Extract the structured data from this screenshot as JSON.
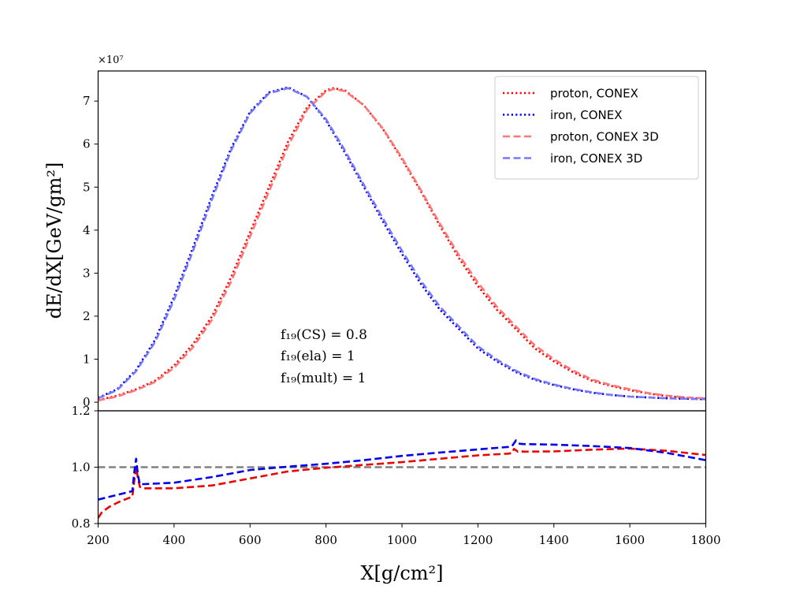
{
  "chart_data": [
    {
      "type": "line",
      "panel": "main",
      "ylabel": "dE/dX[GeV/gm²]",
      "y_scale_label": "×10⁷",
      "y_multiplier": 10000000,
      "xlim": [
        200,
        1800
      ],
      "ylim": [
        -0.2,
        7.7
      ],
      "yticks": [
        0,
        1,
        2,
        3,
        4,
        5,
        6,
        7
      ],
      "yticklabels": [
        "0",
        "1",
        "2",
        "3",
        "4",
        "5",
        "6",
        "7"
      ],
      "grid": false,
      "legend_position": "top-right",
      "annotation": [
        "f₁₉(CS) = 0.8",
        "f₁₉(ela) = 1",
        "f₁₉(mult) = 1"
      ],
      "series": [
        {
          "name": "proton, CONEX",
          "color": "#ff0000",
          "style": "dotted",
          "x": [
            200,
            250,
            300,
            350,
            400,
            450,
            500,
            550,
            600,
            650,
            700,
            750,
            800,
            820,
            850,
            900,
            950,
            1000,
            1050,
            1100,
            1150,
            1200,
            1250,
            1300,
            1350,
            1400,
            1450,
            1500,
            1550,
            1600,
            1650,
            1700,
            1750,
            1800
          ],
          "y": [
            0.05,
            0.15,
            0.3,
            0.5,
            0.85,
            1.35,
            2.0,
            2.9,
            3.95,
            5.0,
            6.05,
            6.85,
            7.25,
            7.3,
            7.25,
            6.9,
            6.35,
            5.65,
            4.9,
            4.1,
            3.35,
            2.7,
            2.15,
            1.7,
            1.25,
            0.95,
            0.7,
            0.5,
            0.38,
            0.28,
            0.2,
            0.14,
            0.1,
            0.08
          ]
        },
        {
          "name": "iron, CONEX",
          "color": "#0000ee",
          "style": "dotted",
          "x": [
            200,
            250,
            300,
            350,
            400,
            450,
            500,
            550,
            600,
            650,
            700,
            750,
            800,
            850,
            900,
            950,
            1000,
            1050,
            1100,
            1150,
            1200,
            1250,
            1300,
            1350,
            1400,
            1450,
            1500,
            1550,
            1600,
            1650,
            1700,
            1750,
            1800
          ],
          "y": [
            0.1,
            0.3,
            0.75,
            1.45,
            2.45,
            3.6,
            4.8,
            5.9,
            6.75,
            7.2,
            7.32,
            7.1,
            6.55,
            5.8,
            5.0,
            4.2,
            3.45,
            2.75,
            2.15,
            1.7,
            1.25,
            0.95,
            0.7,
            0.52,
            0.4,
            0.3,
            0.22,
            0.17,
            0.13,
            0.11,
            0.09,
            0.08,
            0.07
          ]
        },
        {
          "name": "proton, CONEX 3D",
          "color": "#ff7777",
          "style": "dashed",
          "x": [
            200,
            250,
            300,
            350,
            400,
            450,
            500,
            550,
            600,
            650,
            700,
            750,
            800,
            820,
            850,
            900,
            950,
            1000,
            1050,
            1100,
            1150,
            1200,
            1250,
            1300,
            1350,
            1400,
            1450,
            1500,
            1550,
            1600,
            1650,
            1700,
            1750,
            1800
          ],
          "y": [
            0.04,
            0.13,
            0.28,
            0.47,
            0.8,
            1.28,
            1.92,
            2.8,
            3.85,
            4.9,
            5.95,
            6.8,
            7.22,
            7.28,
            7.23,
            6.9,
            6.36,
            5.68,
            4.93,
            4.15,
            3.42,
            2.78,
            2.22,
            1.76,
            1.32,
            1.0,
            0.74,
            0.53,
            0.4,
            0.3,
            0.21,
            0.15,
            0.11,
            0.09
          ]
        },
        {
          "name": "iron, CONEX 3D",
          "color": "#7777ff",
          "style": "dashed",
          "x": [
            200,
            250,
            300,
            350,
            400,
            450,
            500,
            550,
            600,
            650,
            700,
            750,
            800,
            850,
            900,
            950,
            1000,
            1050,
            1100,
            1150,
            1200,
            1250,
            1300,
            1350,
            1400,
            1450,
            1500,
            1550,
            1600,
            1650,
            1700,
            1750,
            1800
          ],
          "y": [
            0.09,
            0.28,
            0.72,
            1.4,
            2.38,
            3.52,
            4.72,
            5.85,
            6.72,
            7.18,
            7.3,
            7.1,
            6.58,
            5.85,
            5.05,
            4.27,
            3.52,
            2.82,
            2.22,
            1.76,
            1.3,
            0.99,
            0.73,
            0.54,
            0.41,
            0.31,
            0.23,
            0.17,
            0.13,
            0.11,
            0.09,
            0.08,
            0.07
          ]
        }
      ]
    },
    {
      "type": "line",
      "panel": "ratio",
      "xlabel": "X[g/cm²]",
      "xlim": [
        200,
        1800
      ],
      "ylim": [
        0.8,
        1.2
      ],
      "xticks": [
        200,
        400,
        600,
        800,
        1000,
        1200,
        1400,
        1600,
        1800
      ],
      "xticklabels": [
        "200",
        "400",
        "600",
        "800",
        "1000",
        "1200",
        "1400",
        "1600",
        "1800"
      ],
      "yticks": [
        0.8,
        1.0,
        1.2
      ],
      "yticklabels": [
        "0.8",
        "1.0",
        "1.2"
      ],
      "grid": false,
      "reference_line": {
        "y": 1.0,
        "color": "#808080",
        "style": "dashed"
      },
      "series": [
        {
          "color": "#ee0000",
          "style": "dashed",
          "x": [
            200,
            210,
            230,
            260,
            290,
            295,
            300,
            305,
            310,
            320,
            400,
            500,
            600,
            700,
            800,
            900,
            1000,
            1100,
            1200,
            1280,
            1290,
            1295,
            1300,
            1305,
            1310,
            1320,
            1400,
            1500,
            1600,
            1700,
            1800
          ],
          "y": [
            0.82,
            0.84,
            0.86,
            0.88,
            0.895,
            0.95,
            1.0,
            0.96,
            0.93,
            0.925,
            0.925,
            0.935,
            0.96,
            0.985,
            0.998,
            1.008,
            1.018,
            1.03,
            1.042,
            1.048,
            1.05,
            1.065,
            1.06,
            1.055,
            1.057,
            1.055,
            1.056,
            1.062,
            1.066,
            1.058,
            1.043
          ]
        },
        {
          "color": "#0000ee",
          "style": "dashed",
          "x": [
            200,
            230,
            260,
            290,
            295,
            300,
            305,
            310,
            320,
            400,
            500,
            600,
            700,
            800,
            900,
            1000,
            1100,
            1200,
            1280,
            1290,
            1295,
            1300,
            1305,
            1310,
            1320,
            1400,
            1500,
            1600,
            1700,
            1800
          ],
          "y": [
            0.885,
            0.895,
            0.905,
            0.915,
            0.98,
            1.03,
            0.97,
            0.94,
            0.94,
            0.945,
            0.965,
            0.99,
            1.002,
            1.012,
            1.025,
            1.04,
            1.052,
            1.063,
            1.072,
            1.075,
            1.085,
            1.095,
            1.088,
            1.083,
            1.082,
            1.08,
            1.075,
            1.068,
            1.05,
            1.025
          ]
        }
      ]
    }
  ]
}
